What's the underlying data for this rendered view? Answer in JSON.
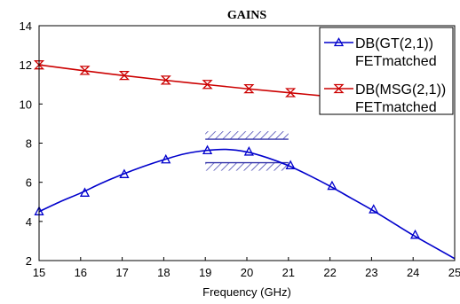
{
  "chart_data": {
    "type": "line",
    "title": "GAINS",
    "xlabel": "Frequency (GHz)",
    "ylabel": "",
    "xlim": [
      15,
      25
    ],
    "ylim": [
      2,
      14
    ],
    "xticks": [
      "15",
      "16",
      "17",
      "18",
      "19",
      "20",
      "21",
      "22",
      "23",
      "24",
      "25"
    ],
    "yticks": [
      "2",
      "4",
      "6",
      "8",
      "10",
      "12",
      "14"
    ],
    "grid": false,
    "legend_position": "top-right",
    "series": [
      {
        "name": "DB(GT(2,1))",
        "name_line2": "FETmatched",
        "color": "#0000cc",
        "marker": "triangle",
        "line": [
          [
            15,
            4.5
          ],
          [
            15.5,
            5.0
          ],
          [
            16,
            5.45
          ],
          [
            16.5,
            5.95
          ],
          [
            17,
            6.4
          ],
          [
            17.5,
            6.8
          ],
          [
            18,
            7.15
          ],
          [
            18.5,
            7.45
          ],
          [
            19,
            7.62
          ],
          [
            19.5,
            7.68
          ],
          [
            20,
            7.55
          ],
          [
            20.5,
            7.25
          ],
          [
            21,
            6.85
          ],
          [
            21.5,
            6.35
          ],
          [
            22,
            5.8
          ],
          [
            22.5,
            5.2
          ],
          [
            23,
            4.6
          ],
          [
            23.5,
            3.95
          ],
          [
            24,
            3.3
          ],
          [
            24.5,
            2.7
          ],
          [
            25,
            2.1
          ]
        ],
        "points": [
          [
            15,
            4.5
          ],
          [
            16.1,
            5.45
          ],
          [
            17.05,
            6.4
          ],
          [
            18.05,
            7.15
          ],
          [
            19.05,
            7.62
          ],
          [
            20.05,
            7.55
          ],
          [
            21.05,
            6.85
          ],
          [
            22.05,
            5.8
          ],
          [
            23.05,
            4.6
          ],
          [
            24.05,
            3.3
          ]
        ]
      },
      {
        "name": "DB(MSG(2,1))",
        "name_line2": "FETmatched",
        "color": "#cc0000",
        "marker": "hourglass",
        "line": [
          [
            15,
            12.0
          ],
          [
            16,
            11.72
          ],
          [
            17,
            11.46
          ],
          [
            18,
            11.22
          ],
          [
            19,
            11.0
          ],
          [
            20,
            10.78
          ],
          [
            21,
            10.58
          ],
          [
            22,
            10.38
          ],
          [
            23,
            10.2
          ]
        ],
        "points": [
          [
            15,
            12.0
          ],
          [
            16.1,
            11.72
          ],
          [
            17.05,
            11.46
          ],
          [
            18.05,
            11.22
          ],
          [
            19.05,
            11.0
          ],
          [
            20.05,
            10.78
          ],
          [
            21.05,
            10.58
          ]
        ]
      }
    ],
    "goals": [
      {
        "x": [
          19.0,
          21.0
        ],
        "y": 8.2,
        "hatch_side": "above"
      },
      {
        "x": [
          19.0,
          21.0
        ],
        "y": 7.0,
        "hatch_side": "below"
      }
    ]
  }
}
